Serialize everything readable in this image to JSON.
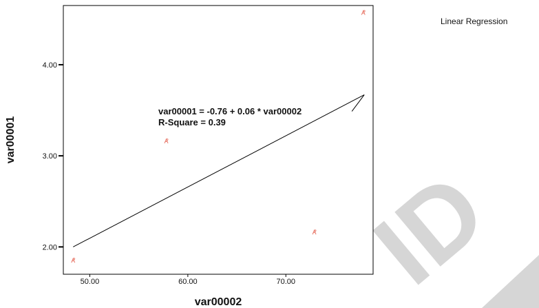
{
  "chart_data": {
    "type": "scatter",
    "title": "",
    "xlabel": "var00002",
    "ylabel": "var00001",
    "xlim": [
      47.3,
      78.9
    ],
    "ylim": [
      1.7,
      4.65
    ],
    "x_ticks": [
      {
        "value": 50,
        "label": "50.00"
      },
      {
        "value": 60,
        "label": "60.00"
      },
      {
        "value": 70,
        "label": "70.00"
      }
    ],
    "y_ticks": [
      {
        "value": 2,
        "label": "2.00"
      },
      {
        "value": 3,
        "label": "3.00"
      },
      {
        "value": 4,
        "label": "4.00"
      }
    ],
    "points": [
      {
        "x": 48.3,
        "y": 1.85
      },
      {
        "x": 57.8,
        "y": 3.16
      },
      {
        "x": 72.9,
        "y": 2.16
      },
      {
        "x": 77.9,
        "y": 4.57
      }
    ],
    "regression": {
      "intercept": -0.76,
      "slope": 0.06,
      "line": [
        {
          "x": 48.3,
          "y": 2.0
        },
        {
          "x": 78.0,
          "y": 3.67
        }
      ],
      "equation_label": "var00001 = -0.76 + 0.06 * var00002",
      "r_square_label": "R-Square = 0.39"
    },
    "legend": {
      "label": "Linear Regression",
      "placement": "top-right"
    },
    "grid": false,
    "colors": {
      "points": "#e8786a",
      "line": "#000000",
      "frame": "#000000",
      "watermark": "#d6d6d6"
    },
    "watermark_text": "ID"
  }
}
